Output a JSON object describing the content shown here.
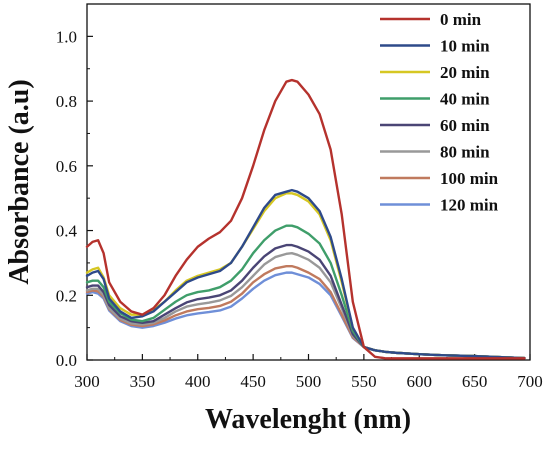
{
  "chart_data": {
    "type": "line",
    "xlabel": "Wavelenght (nm)",
    "ylabel": "Absorbance (a.u)",
    "xlim": [
      300,
      700
    ],
    "ylim": [
      0,
      1.1
    ],
    "xticks": [
      "300",
      "350",
      "400",
      "450",
      "500",
      "550",
      "600",
      "650",
      "700"
    ],
    "yticks": [
      "0.0",
      "0.2",
      "0.4",
      "0.6",
      "0.8",
      "1.0"
    ],
    "grid": false,
    "legend_position": "top-right",
    "x": [
      300,
      305,
      310,
      315,
      320,
      330,
      340,
      350,
      360,
      370,
      380,
      390,
      400,
      410,
      420,
      430,
      440,
      450,
      460,
      470,
      480,
      485,
      490,
      500,
      510,
      520,
      530,
      540,
      550,
      560,
      570,
      580,
      600,
      620,
      650,
      680,
      695
    ],
    "series": [
      {
        "name": "0 min",
        "color": "#b5322d",
        "values": [
          0.35,
          0.365,
          0.37,
          0.33,
          0.24,
          0.18,
          0.15,
          0.14,
          0.16,
          0.2,
          0.26,
          0.31,
          0.35,
          0.375,
          0.395,
          0.43,
          0.5,
          0.6,
          0.71,
          0.8,
          0.86,
          0.865,
          0.86,
          0.82,
          0.76,
          0.65,
          0.45,
          0.18,
          0.04,
          0.01,
          0.005,
          0.005,
          0.005,
          0.005,
          0.005,
          0.005,
          0.005
        ]
      },
      {
        "name": "10 min",
        "color": "#2e4a8a",
        "values": [
          0.26,
          0.27,
          0.275,
          0.25,
          0.19,
          0.15,
          0.13,
          0.135,
          0.15,
          0.18,
          0.21,
          0.24,
          0.255,
          0.265,
          0.275,
          0.3,
          0.35,
          0.41,
          0.47,
          0.51,
          0.52,
          0.525,
          0.52,
          0.5,
          0.46,
          0.38,
          0.25,
          0.1,
          0.04,
          0.03,
          0.025,
          0.022,
          0.018,
          0.015,
          0.012,
          0.008,
          0.006
        ]
      },
      {
        "name": "20 min",
        "color": "#d6c722",
        "values": [
          0.27,
          0.28,
          0.285,
          0.255,
          0.2,
          0.16,
          0.14,
          0.14,
          0.155,
          0.18,
          0.215,
          0.245,
          0.26,
          0.27,
          0.28,
          0.3,
          0.35,
          0.405,
          0.46,
          0.5,
          0.515,
          0.515,
          0.51,
          0.49,
          0.45,
          0.37,
          0.24,
          0.1,
          0.04,
          0.03,
          0.025,
          0.022,
          0.018,
          0.015,
          0.012,
          0.008,
          0.006
        ]
      },
      {
        "name": "40 min",
        "color": "#3f9e6a",
        "values": [
          0.24,
          0.245,
          0.245,
          0.225,
          0.18,
          0.145,
          0.125,
          0.12,
          0.13,
          0.155,
          0.18,
          0.2,
          0.21,
          0.215,
          0.225,
          0.245,
          0.28,
          0.33,
          0.37,
          0.4,
          0.415,
          0.415,
          0.41,
          0.39,
          0.36,
          0.3,
          0.2,
          0.09,
          0.04,
          0.03,
          0.025,
          0.022,
          0.018,
          0.015,
          0.012,
          0.008,
          0.006
        ]
      },
      {
        "name": "60 min",
        "color": "#4a4575",
        "values": [
          0.225,
          0.23,
          0.23,
          0.21,
          0.17,
          0.135,
          0.12,
          0.115,
          0.12,
          0.14,
          0.16,
          0.178,
          0.188,
          0.193,
          0.2,
          0.215,
          0.245,
          0.285,
          0.32,
          0.345,
          0.355,
          0.355,
          0.35,
          0.335,
          0.31,
          0.26,
          0.17,
          0.08,
          0.04,
          0.03,
          0.025,
          0.022,
          0.018,
          0.015,
          0.012,
          0.008,
          0.006
        ]
      },
      {
        "name": "80 min",
        "color": "#999999",
        "values": [
          0.215,
          0.22,
          0.22,
          0.2,
          0.16,
          0.128,
          0.113,
          0.11,
          0.115,
          0.13,
          0.15,
          0.165,
          0.172,
          0.177,
          0.184,
          0.198,
          0.225,
          0.26,
          0.295,
          0.318,
          0.328,
          0.33,
          0.325,
          0.31,
          0.285,
          0.24,
          0.16,
          0.075,
          0.04,
          0.03,
          0.025,
          0.022,
          0.018,
          0.015,
          0.012,
          0.008,
          0.006
        ]
      },
      {
        "name": "100 min",
        "color": "#c07a5e",
        "values": [
          0.21,
          0.215,
          0.212,
          0.195,
          0.157,
          0.124,
          0.109,
          0.105,
          0.11,
          0.122,
          0.138,
          0.15,
          0.157,
          0.161,
          0.167,
          0.18,
          0.205,
          0.24,
          0.265,
          0.283,
          0.29,
          0.29,
          0.285,
          0.27,
          0.25,
          0.21,
          0.14,
          0.07,
          0.04,
          0.03,
          0.025,
          0.022,
          0.018,
          0.015,
          0.012,
          0.008,
          0.006
        ]
      },
      {
        "name": "120 min",
        "color": "#6f8fd8",
        "values": [
          0.205,
          0.21,
          0.205,
          0.19,
          0.153,
          0.12,
          0.105,
          0.1,
          0.105,
          0.115,
          0.128,
          0.138,
          0.144,
          0.148,
          0.153,
          0.165,
          0.19,
          0.22,
          0.245,
          0.262,
          0.27,
          0.27,
          0.265,
          0.255,
          0.235,
          0.2,
          0.135,
          0.068,
          0.04,
          0.03,
          0.025,
          0.022,
          0.018,
          0.015,
          0.012,
          0.008,
          0.006
        ]
      }
    ]
  }
}
